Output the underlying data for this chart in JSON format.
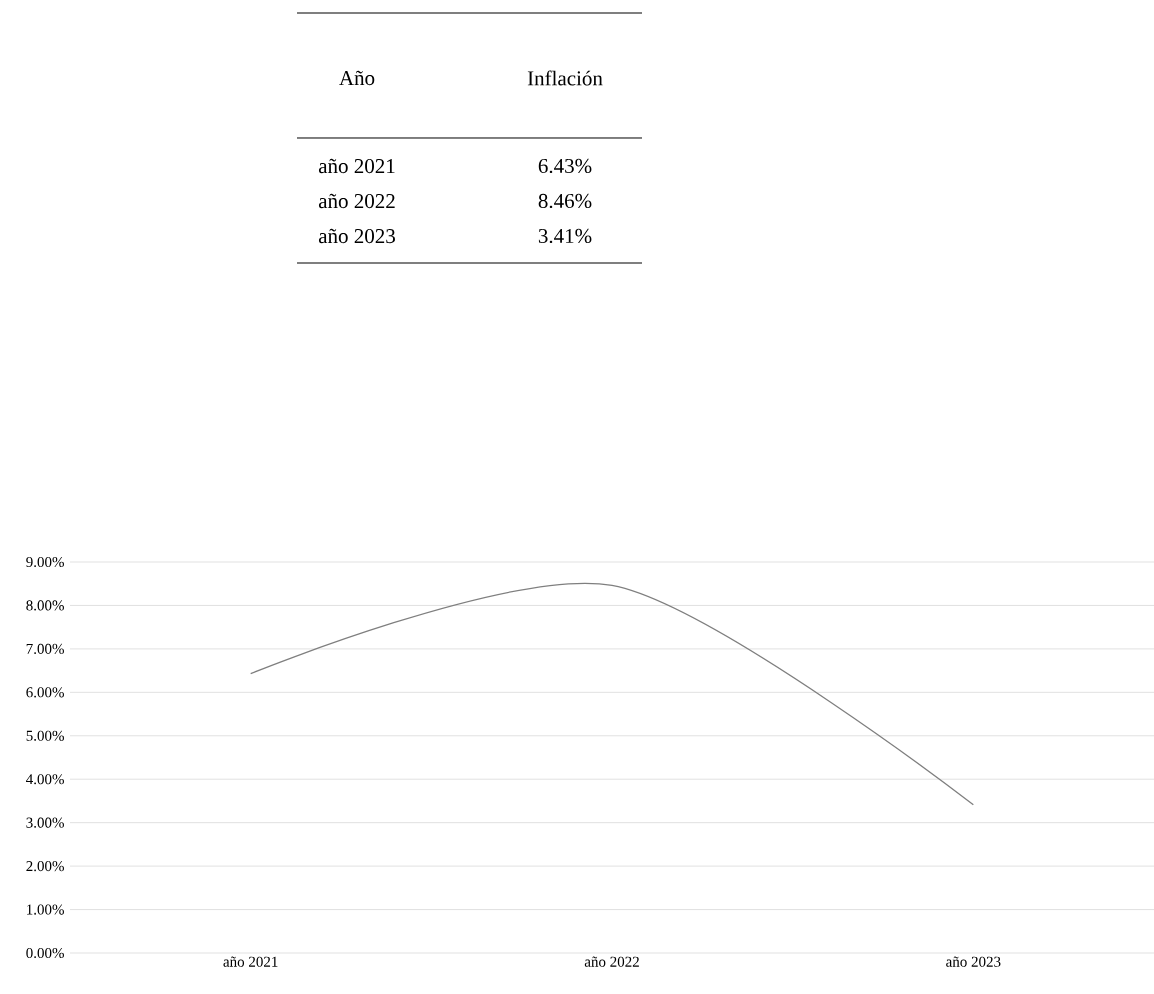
{
  "chart_data": {
    "type": "line",
    "categories": [
      "año 2021",
      "año 2022",
      "año 2023"
    ],
    "series": [
      {
        "color": "#7f7f7f",
        "values": [
          6.43,
          8.46,
          3.41
        ]
      }
    ],
    "annotations": [
      "Año",
      "Inflación",
      "6.43%",
      "8.46%",
      "3.41%"
    ],
    "ylim": [
      0,
      9
    ],
    "yticks": [
      {
        "value": 0,
        "label": "0.00%"
      },
      {
        "value": 1,
        "label": "1.00%"
      },
      {
        "value": 2,
        "label": "2.00%"
      },
      {
        "value": 3,
        "label": "3.00%"
      },
      {
        "value": 4,
        "label": "4.00%"
      },
      {
        "value": 5,
        "label": "5.00%"
      },
      {
        "value": 6,
        "label": "6.00%"
      },
      {
        "value": 7,
        "label": "7.00%"
      },
      {
        "value": 8,
        "label": "8.00%"
      },
      {
        "value": 9,
        "label": "9.00%"
      }
    ],
    "grid": "y",
    "line_style": "solid"
  }
}
